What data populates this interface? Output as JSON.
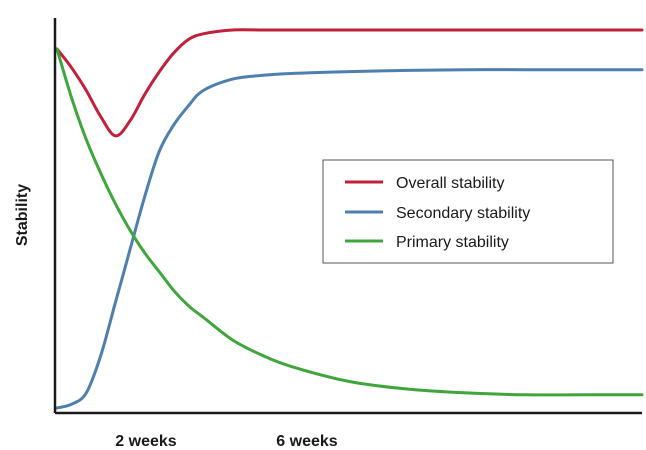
{
  "chart_data": {
    "type": "line",
    "title": "",
    "xlabel": "",
    "ylabel": "Stability",
    "x_ticks": [
      "2 weeks",
      "6 weeks"
    ],
    "legend_position": "center-right",
    "grid": false,
    "series": [
      {
        "name": "Overall stability",
        "color": "#c0213a",
        "x": [
          0,
          0.5,
          1,
          1.5,
          2,
          2.5,
          3,
          3.5,
          4,
          4.5,
          5,
          6,
          7,
          8,
          10,
          12,
          14,
          16,
          18,
          20
        ],
        "y": [
          0.95,
          0.9,
          0.84,
          0.77,
          0.72,
          0.76,
          0.83,
          0.89,
          0.94,
          0.975,
          0.99,
          1.0,
          1.0,
          1.0,
          1.0,
          1.0,
          1.0,
          1.0,
          1.0,
          1.0
        ]
      },
      {
        "name": "Secondary stability",
        "color": "#4f7fae",
        "x": [
          0,
          0.5,
          1,
          1.5,
          2,
          2.5,
          3,
          3.5,
          4,
          4.5,
          5,
          6,
          7,
          8,
          10,
          12,
          14,
          16,
          18,
          20
        ],
        "y": [
          0.0,
          0.01,
          0.04,
          0.14,
          0.28,
          0.42,
          0.56,
          0.68,
          0.75,
          0.8,
          0.84,
          0.87,
          0.88,
          0.885,
          0.89,
          0.893,
          0.895,
          0.895,
          0.895,
          0.895
        ]
      },
      {
        "name": "Primary stability",
        "color": "#3fa63c",
        "x": [
          0,
          0.5,
          1,
          1.5,
          2,
          2.5,
          3,
          3.5,
          4,
          4.5,
          5,
          6,
          7,
          8,
          10,
          12,
          14,
          16,
          18,
          20
        ],
        "y": [
          0.95,
          0.82,
          0.71,
          0.62,
          0.54,
          0.47,
          0.41,
          0.36,
          0.31,
          0.27,
          0.24,
          0.18,
          0.14,
          0.11,
          0.07,
          0.05,
          0.04,
          0.035,
          0.035,
          0.035
        ]
      }
    ]
  }
}
